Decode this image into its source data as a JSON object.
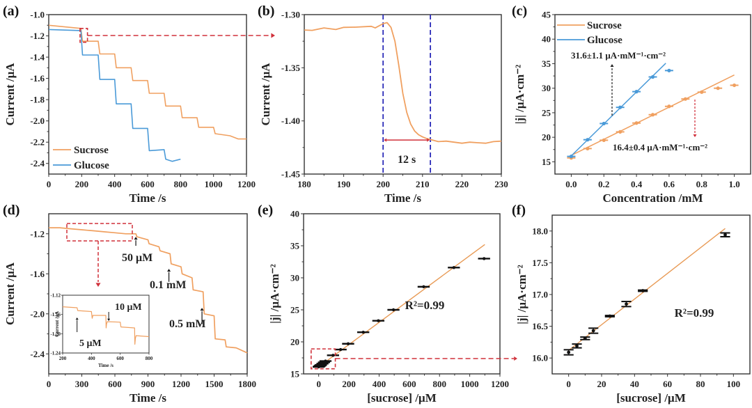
{
  "colors": {
    "sucrose": "#F0A060",
    "glucose": "#4A9AD8",
    "fit_orange": "#E89A55",
    "fit_blue": "#3A8FD0",
    "red_dash": "#D0303A",
    "blue_dash": "#2A2AB8",
    "black": "#111111",
    "sensitivity_red": "#D02A36"
  },
  "chart_data": [
    {
      "id": "a",
      "panel_label": "(a)",
      "type": "line",
      "xlabel": "Time /s",
      "ylabel": "Current /μA",
      "xlim": [
        0,
        1200
      ],
      "ylim": [
        -2.5,
        -1.0
      ],
      "xticks": [
        0,
        200,
        400,
        600,
        800,
        1000,
        1200
      ],
      "yticks": [
        -1.0,
        -1.2,
        -1.4,
        -1.6,
        -1.8,
        -2.0,
        -2.2,
        -2.4
      ],
      "ytick_labels": [
        "-1.0",
        "-1.2",
        "-1.4",
        "-1.6",
        "-1.8",
        "-2.0",
        "-2.2",
        "-2.4"
      ],
      "legend": {
        "placement": "bottom-left",
        "entries": [
          "Sucrose",
          "Glucose"
        ]
      },
      "series": [
        {
          "name": "Sucrose",
          "color_key": "sucrose",
          "x": [
            0,
            195,
            205,
            300,
            310,
            400,
            410,
            500,
            510,
            600,
            610,
            700,
            710,
            800,
            810,
            900,
            910,
            1000,
            1010,
            1100,
            1150,
            1200
          ],
          "y": [
            -1.1,
            -1.13,
            -1.25,
            -1.25,
            -1.37,
            -1.37,
            -1.5,
            -1.5,
            -1.62,
            -1.62,
            -1.74,
            -1.74,
            -1.86,
            -1.86,
            -1.97,
            -1.97,
            -2.06,
            -2.06,
            -2.12,
            -2.14,
            -2.17,
            -2.17
          ]
        },
        {
          "name": "Glucose",
          "color_key": "glucose",
          "x": [
            0,
            195,
            205,
            300,
            310,
            400,
            410,
            500,
            510,
            600,
            610,
            700,
            710,
            750,
            800
          ],
          "y": [
            -1.14,
            -1.15,
            -1.38,
            -1.38,
            -1.61,
            -1.61,
            -1.84,
            -1.84,
            -2.07,
            -2.07,
            -2.28,
            -2.27,
            -2.36,
            -2.38,
            -2.36
          ]
        }
      ],
      "annotations": [
        {
          "type": "zoom-box",
          "x_range": [
            190,
            235
          ],
          "y_range": [
            -1.26,
            -1.13
          ],
          "points_to": "b"
        }
      ]
    },
    {
      "id": "b",
      "panel_label": "(b)",
      "type": "line",
      "xlabel": "Time /s",
      "ylabel": "Current /μA",
      "xlim": [
        180,
        230
      ],
      "ylim": [
        -1.45,
        -1.3
      ],
      "xticks": [
        180,
        190,
        200,
        210,
        220,
        230
      ],
      "yticks": [
        -1.3,
        -1.35,
        -1.4,
        -1.45
      ],
      "ytick_labels": [
        "-1.30",
        "-1.35",
        "-1.40",
        "-1.45"
      ],
      "series": [
        {
          "name": "Sucrose",
          "color_key": "sucrose",
          "x": [
            180,
            182,
            185,
            188,
            190,
            193,
            197,
            198,
            200,
            201,
            202,
            203,
            204,
            205,
            206,
            207,
            208,
            209,
            210,
            211,
            212,
            214,
            216,
            218,
            220,
            222,
            224,
            226,
            228,
            230
          ],
          "y": [
            -1.3145,
            -1.3148,
            -1.3125,
            -1.314,
            -1.312,
            -1.3118,
            -1.311,
            -1.3125,
            -1.3085,
            -1.3075,
            -1.312,
            -1.325,
            -1.348,
            -1.374,
            -1.392,
            -1.403,
            -1.4095,
            -1.413,
            -1.415,
            -1.4165,
            -1.4175,
            -1.4195,
            -1.419,
            -1.42,
            -1.421,
            -1.42,
            -1.4205,
            -1.421,
            -1.4195,
            -1.419
          ]
        }
      ],
      "vlines": [
        200,
        212
      ],
      "annotations": [
        {
          "type": "double-arrow",
          "x_range": [
            200,
            212
          ],
          "y": -1.418,
          "label": "12 s"
        }
      ]
    },
    {
      "id": "c",
      "panel_label": "(c)",
      "type": "scatter",
      "xlabel": "Concentration /mM",
      "ylabel": "|j| /μA·cm⁻²",
      "xlim": [
        -0.1,
        1.1
      ],
      "ylim": [
        12.5,
        45
      ],
      "xticks": [
        0.0,
        0.2,
        0.4,
        0.6,
        0.8,
        1.0
      ],
      "xtick_labels": [
        "0.0",
        "0.2",
        "0.4",
        "0.6",
        "0.8",
        "1.0"
      ],
      "yticks": [
        15,
        20,
        25,
        30,
        35,
        40,
        45
      ],
      "legend": {
        "placement": "top-left",
        "entries": [
          "Sucrose",
          "Glucose"
        ]
      },
      "series": [
        {
          "name": "Sucrose",
          "color_key": "sucrose",
          "x": [
            0.0,
            0.1,
            0.2,
            0.3,
            0.4,
            0.5,
            0.6,
            0.7,
            0.8,
            0.9,
            1.0
          ],
          "y": [
            15.8,
            17.7,
            19.4,
            21.1,
            22.9,
            24.6,
            26.3,
            27.8,
            29.2,
            30.0,
            30.6
          ],
          "fit": {
            "x": [
              0.0,
              1.0
            ],
            "y": [
              16.3,
              32.7
            ]
          }
        },
        {
          "name": "Glucose",
          "color_key": "glucose",
          "x": [
            0.0,
            0.1,
            0.2,
            0.3,
            0.4,
            0.5,
            0.6
          ],
          "y": [
            16.1,
            19.5,
            22.8,
            26.1,
            29.3,
            32.3,
            33.6
          ],
          "fit": {
            "x": [
              0.0,
              0.58
            ],
            "y": [
              16.2,
              35.1
            ]
          }
        }
      ],
      "annotations": [
        {
          "text": "31.6±1.1 μA·mM⁻¹·cm⁻²",
          "color_key": "black"
        },
        {
          "text": "16.4±0.4 μA·mM⁻¹·cm⁻²",
          "color_key": "sensitivity_red"
        }
      ]
    },
    {
      "id": "d",
      "panel_label": "(d)",
      "type": "line",
      "xlabel": "Time /s",
      "ylabel": "Current /μA",
      "xlim": [
        0,
        1800
      ],
      "ylim": [
        -2.6,
        -1.0
      ],
      "xticks": [
        0,
        300,
        600,
        900,
        1200,
        1500,
        1800
      ],
      "yticks": [
        -1.2,
        -1.6,
        -2.0,
        -2.4
      ],
      "ytick_labels": [
        "-1.2",
        "-1.6",
        "-2.0",
        "-2.4"
      ],
      "series": [
        {
          "name": "Sucrose",
          "color_key": "sucrose",
          "x": [
            0,
            100,
            200,
            300,
            400,
            500,
            600,
            700,
            790,
            800,
            900,
            910,
            1000,
            1010,
            1100,
            1110,
            1200,
            1210,
            1300,
            1310,
            1400,
            1410,
            1500,
            1510,
            1600,
            1610,
            1700,
            1800
          ],
          "y": [
            -1.14,
            -1.14,
            -1.15,
            -1.16,
            -1.17,
            -1.18,
            -1.19,
            -1.2,
            -1.2,
            -1.23,
            -1.26,
            -1.3,
            -1.33,
            -1.37,
            -1.4,
            -1.5,
            -1.53,
            -1.6,
            -1.64,
            -1.76,
            -1.78,
            -2.0,
            -2.02,
            -2.25,
            -2.26,
            -2.33,
            -2.34,
            -2.39
          ]
        }
      ],
      "annotations": [
        {
          "text": "50 μM",
          "arrow_x": 790
        },
        {
          "text": "0.1 mM",
          "arrow_x": 1090
        },
        {
          "text": "0.5 mM",
          "arrow_x": 1390
        }
      ],
      "inset": {
        "xlabel": "Time /s",
        "ylabel": "Current /μA",
        "xlim": [
          200,
          800
        ],
        "ylim": [
          -1.24,
          -1.12
        ],
        "xticks": [
          200,
          400,
          600,
          800
        ],
        "yticks": [
          -1.12,
          -1.16,
          -1.2,
          -1.24
        ],
        "ytick_labels": [
          "-1.12",
          "-1.16",
          "-1.20",
          "-1.24"
        ],
        "series": {
          "x": [
            200,
            300,
            305,
            400,
            405,
            410,
            500,
            502,
            505,
            510,
            600,
            605,
            700,
            702,
            705,
            710,
            800
          ],
          "y": [
            -1.144,
            -1.146,
            -1.152,
            -1.154,
            -1.168,
            -1.162,
            -1.162,
            -1.188,
            -1.18,
            -1.175,
            -1.176,
            -1.186,
            -1.188,
            -1.222,
            -1.21,
            -1.204,
            -1.206
          ]
        },
        "annotations": [
          {
            "text": "5 μM",
            "arrow_x": 300
          },
          {
            "text": "10 μM",
            "arrow_x": 520
          }
        ]
      }
    },
    {
      "id": "e",
      "panel_label": "(e)",
      "type": "scatter",
      "xlabel": "[sucrose] /μM",
      "ylabel": "|j| /μA·cm⁻²",
      "xlim": [
        -100,
        1200
      ],
      "ylim": [
        15,
        40
      ],
      "xticks": [
        0,
        200,
        400,
        600,
        800,
        1000,
        1200
      ],
      "yticks": [
        15,
        20,
        25,
        30,
        35,
        40
      ],
      "series": [
        {
          "name": "Sucrose",
          "color_key": "black",
          "x": [
            0,
            5,
            10,
            15,
            25,
            35,
            45,
            95,
            145,
            195,
            295,
            395,
            495,
            695,
            895,
            1095
          ],
          "y": [
            16.1,
            16.2,
            16.3,
            16.4,
            16.6,
            16.8,
            17.0,
            17.9,
            18.8,
            19.7,
            21.5,
            23.3,
            25.0,
            28.6,
            31.6,
            33.0
          ],
          "x_err": 40,
          "fit": {
            "x": [
              0,
              1100
            ],
            "y": [
              16.1,
              35.2
            ]
          }
        }
      ],
      "annotations": [
        {
          "text": "R²=0.99"
        },
        {
          "type": "zoom-box",
          "x_range": [
            -50,
            110
          ],
          "y_range": [
            15.8,
            18.9
          ],
          "points_to": "f"
        }
      ]
    },
    {
      "id": "f",
      "panel_label": "(f)",
      "type": "scatter",
      "xlabel": "[sucrose] /μM",
      "ylabel": "|j| /μA·cm⁻²",
      "xlim": [
        -10,
        110
      ],
      "ylim": [
        15.75,
        18.25
      ],
      "xticks": [
        0,
        20,
        40,
        60,
        80,
        100
      ],
      "yticks": [
        16.0,
        16.5,
        17.0,
        17.5,
        18.0
      ],
      "ytick_labels": [
        "16.0",
        "16.5",
        "17.0",
        "17.5",
        "18.0"
      ],
      "series": [
        {
          "name": "Sucrose",
          "color_key": "black",
          "x": [
            0,
            5,
            10,
            15,
            25,
            35,
            45,
            95
          ],
          "y": [
            16.09,
            16.19,
            16.31,
            16.43,
            16.66,
            16.85,
            17.06,
            17.94
          ],
          "y_err": [
            0.04,
            0.03,
            0.02,
            0.04,
            0.01,
            0.04,
            0.01,
            0.03
          ],
          "x_err": 3,
          "fit": {
            "x": [
              0,
              95
            ],
            "y": [
              16.12,
              18.04
            ]
          }
        }
      ],
      "annotations": [
        {
          "text": "R²=0.99"
        }
      ]
    }
  ]
}
